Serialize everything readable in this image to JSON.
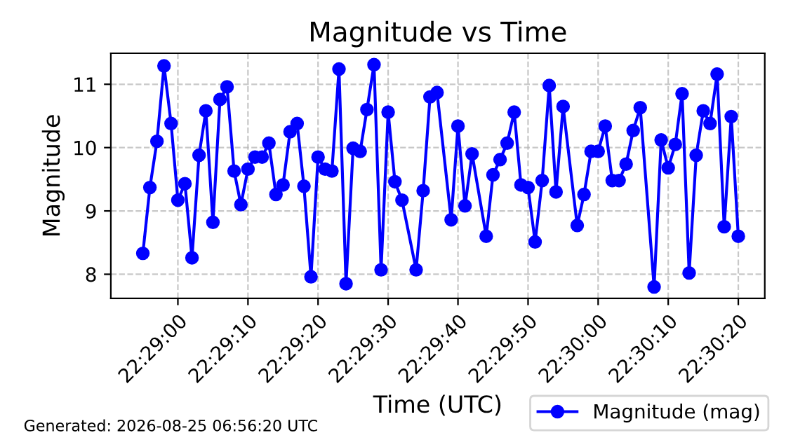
{
  "chart_data": {
    "type": "line",
    "title": "Magnitude vs Time",
    "xlabel": "Time (UTC)",
    "ylabel": "Magnitude",
    "x": [
      22.48194,
      22.48222,
      22.4825,
      22.48278,
      22.48306,
      22.48333,
      22.48361,
      22.48389,
      22.48417,
      22.48444,
      22.48472,
      22.485,
      22.48528,
      22.48556,
      22.48583,
      22.48611,
      22.48639,
      22.48667,
      22.48694,
      22.48722,
      22.4875,
      22.48778,
      22.48806,
      22.48833,
      22.48861,
      22.48889,
      22.48917,
      22.48944,
      22.48972,
      22.49,
      22.49028,
      22.49056,
      22.49083,
      22.49111,
      22.49139,
      22.49167,
      22.49194,
      22.49222,
      22.49278,
      22.49306,
      22.49333,
      22.49361,
      22.49417,
      22.49444,
      22.49472,
      22.495,
      22.49556,
      22.49583,
      22.49611,
      22.49639,
      22.49667,
      22.49694,
      22.49722,
      22.4975,
      22.49778,
      22.49806,
      22.49833,
      22.49861,
      22.49917,
      22.49944,
      22.49972,
      22.5,
      22.50028,
      22.50056,
      22.50083,
      22.50111,
      22.50139,
      22.50167,
      22.50222,
      22.5025,
      22.50278,
      22.50306,
      22.50333,
      22.50361,
      22.50389,
      22.50417,
      22.50444,
      22.50472,
      22.505,
      22.50528,
      22.50556
    ],
    "series": [
      {
        "name": "Magnitude (mag)",
        "color": "#0000ff",
        "values": [
          8.33,
          9.37,
          10.1,
          11.29,
          10.38,
          9.17,
          9.43,
          8.26,
          9.88,
          10.58,
          8.82,
          10.76,
          10.96,
          9.63,
          9.1,
          9.66,
          9.85,
          9.85,
          10.07,
          9.26,
          9.41,
          10.25,
          10.38,
          9.39,
          7.96,
          9.85,
          9.66,
          9.63,
          11.24,
          7.85,
          9.99,
          9.94,
          10.6,
          11.31,
          8.07,
          10.56,
          9.46,
          9.17,
          8.07,
          9.32,
          10.8,
          10.87,
          8.86,
          10.34,
          9.08,
          9.9,
          8.6,
          9.57,
          9.81,
          10.07,
          10.56,
          9.41,
          9.37,
          8.51,
          9.48,
          10.98,
          9.3,
          10.65,
          8.77,
          9.26,
          9.94,
          9.94,
          10.34,
          9.48,
          9.48,
          9.74,
          10.27,
          10.63,
          7.8,
          10.12,
          9.68,
          10.05,
          10.85,
          8.02,
          9.88,
          10.58,
          10.38,
          11.16,
          8.75,
          10.49,
          8.6
        ]
      }
    ],
    "xlim": [
      22.48067,
      22.50661
    ],
    "ylim": [
      7.62,
      11.49
    ],
    "xticks": [
      {
        "value": 22.48333,
        "label": "22:29:00"
      },
      {
        "value": 22.48611,
        "label": "22:29:10"
      },
      {
        "value": 22.48889,
        "label": "22:29:20"
      },
      {
        "value": 22.49167,
        "label": "22:29:30"
      },
      {
        "value": 22.49444,
        "label": "22:29:40"
      },
      {
        "value": 22.49722,
        "label": "22:29:50"
      },
      {
        "value": 22.5,
        "label": "22:30:00"
      },
      {
        "value": 22.50278,
        "label": "22:30:10"
      },
      {
        "value": 22.50556,
        "label": "22:30:20"
      }
    ],
    "yticks": [
      8,
      9,
      10,
      11
    ],
    "grid": true,
    "legend": "bottom right",
    "marker": "circle",
    "line_style": "solid",
    "annotations": [
      "Generated: 2026-08-25 06:56:20 UTC"
    ]
  }
}
